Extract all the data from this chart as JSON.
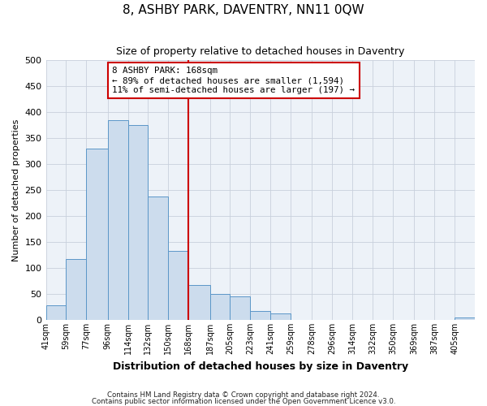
{
  "title": "8, ASHBY PARK, DAVENTRY, NN11 0QW",
  "subtitle": "Size of property relative to detached houses in Daventry",
  "xlabel": "Distribution of detached houses by size in Daventry",
  "ylabel": "Number of detached properties",
  "footnote1": "Contains HM Land Registry data © Crown copyright and database right 2024.",
  "footnote2": "Contains public sector information licensed under the Open Government Licence v3.0.",
  "bar_labels": [
    "41sqm",
    "59sqm",
    "77sqm",
    "96sqm",
    "114sqm",
    "132sqm",
    "150sqm",
    "168sqm",
    "187sqm",
    "205sqm",
    "223sqm",
    "241sqm",
    "259sqm",
    "278sqm",
    "296sqm",
    "314sqm",
    "332sqm",
    "350sqm",
    "369sqm",
    "387sqm",
    "405sqm"
  ],
  "bar_values": [
    28,
    117,
    330,
    385,
    375,
    238,
    133,
    68,
    50,
    45,
    18,
    13,
    0,
    0,
    0,
    0,
    0,
    0,
    0,
    0,
    5
  ],
  "bin_edges": [
    41,
    59,
    77,
    96,
    114,
    132,
    150,
    168,
    187,
    205,
    223,
    241,
    259,
    278,
    296,
    314,
    332,
    350,
    369,
    387,
    405,
    423
  ],
  "property_size": 168,
  "property_label": "8 ASHBY PARK: 168sqm",
  "annotation_line1": "← 89% of detached houses are smaller (1,594)",
  "annotation_line2": "11% of semi-detached houses are larger (197) →",
  "bar_fill_color": "#ccdced",
  "bar_edge_color": "#5b96c8",
  "vline_color": "#cc0000",
  "annotation_box_edge": "#cc0000",
  "ylim": [
    0,
    500
  ],
  "yticks": [
    0,
    50,
    100,
    150,
    200,
    250,
    300,
    350,
    400,
    450,
    500
  ],
  "grid_color": "#c8d0dc",
  "bg_color": "#ffffff",
  "plot_bg_color": "#edf2f8"
}
